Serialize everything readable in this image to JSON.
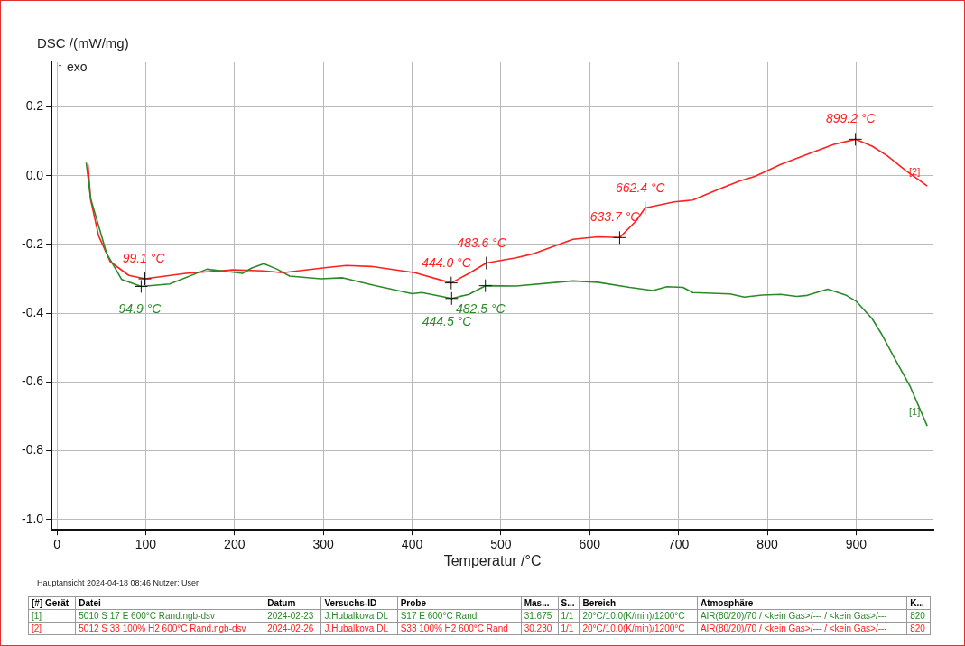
{
  "chart_data": {
    "type": "line",
    "ylabel": "DSC /(mW/mg)",
    "xlabel": "Temperatur /°C",
    "xlim": [
      -6,
      987
    ],
    "xticks": [
      0,
      100,
      200,
      300,
      400,
      500,
      600,
      700,
      800,
      900
    ],
    "ylim": [
      -1.03,
      0.33
    ],
    "yticks": [
      {
        "value": 0.2,
        "label": "0.2"
      },
      {
        "value": 0,
        "label": "0.0"
      },
      {
        "value": -0.2,
        "label": "-0.2"
      },
      {
        "value": -0.4,
        "label": "-0.4"
      },
      {
        "value": -0.6,
        "label": "-0.6"
      },
      {
        "value": -0.8,
        "label": "-0.8"
      },
      {
        "value": -1,
        "label": "-1.0"
      }
    ],
    "grid": true,
    "legend": false,
    "marker": "none",
    "line_style": "solid",
    "series": [
      {
        "name": "[1]",
        "color": "#2a8a2a",
        "x": [
          33,
          38,
          56,
          73,
          94.9,
          127,
          169,
          209,
          219,
          233,
          248,
          262,
          297,
          322,
          357,
          400,
          411,
          444.5,
          464,
          482.5,
          517,
          581,
          609,
          645,
          671,
          687,
          705,
          716,
          758,
          774,
          794,
          815,
          833,
          845,
          868,
          889,
          900,
          918,
          929,
          943,
          961,
          980
        ],
        "values": [
          0.038,
          -0.066,
          -0.226,
          -0.302,
          -0.322,
          -0.315,
          -0.272,
          -0.284,
          -0.269,
          -0.256,
          -0.272,
          -0.292,
          -0.3,
          -0.297,
          -0.319,
          -0.343,
          -0.34,
          -0.357,
          -0.345,
          -0.32,
          -0.321,
          -0.306,
          -0.31,
          -0.325,
          -0.334,
          -0.323,
          -0.325,
          -0.34,
          -0.344,
          -0.353,
          -0.347,
          -0.345,
          -0.351,
          -0.348,
          -0.33,
          -0.348,
          -0.365,
          -0.416,
          -0.462,
          -0.53,
          -0.614,
          -0.728
        ]
      },
      {
        "name": "[2]",
        "color": "#ff2020",
        "x": [
          35,
          38,
          47,
          60,
          81,
          99.1,
          145,
          198,
          233,
          254,
          304,
          326,
          354,
          403,
          444,
          464,
          483.6,
          517,
          538,
          581,
          609,
          633.7,
          652,
          662.4,
          695,
          716,
          744,
          769,
          786,
          815,
          847,
          875,
          899.2,
          918,
          935,
          956,
          980
        ],
        "values": [
          0.033,
          -0.07,
          -0.175,
          -0.25,
          -0.29,
          -0.3,
          -0.284,
          -0.274,
          -0.277,
          -0.282,
          -0.267,
          -0.261,
          -0.264,
          -0.282,
          -0.312,
          -0.284,
          -0.254,
          -0.239,
          -0.226,
          -0.185,
          -0.178,
          -0.18,
          -0.132,
          -0.094,
          -0.076,
          -0.071,
          -0.041,
          -0.015,
          -0.002,
          0.033,
          0.064,
          0.091,
          0.106,
          0.086,
          0.058,
          0.015,
          -0.03
        ]
      }
    ],
    "annotations": [
      "↑ exo",
      "Hauptansicht   2024-04-18 08:46   Nutzer: User",
      "[#] Gerät\tDatei\tDatum\tVersuchs-ID\tProbe\tMas...\tS...\tBereich\tAtmosphäre\tK...",
      "[1]\t5010  S 17  E  600°C  Rand.ngb-dsv\t2024-02-23\tJ.Hubalkova  DL\tS17  E  600°C  Rand\t31.675\t1/1\t20°C/10.0(K/min)/1200°C\tAIR(80/20)/70 / <kein Gas>/--- / <kein Gas>/---\t820",
      "[2]\t5012  S 33  100% H2  600°C  Rand.ngb-dsv\t2024-02-26\tJ.Hubalkova  DL\tS33 100% H2 600°C  Rand\t30.230\t1/1\t20°C/10.0(K/min)/1200°C\tAIR(80/20)/70 / <kein Gas>/--- / <kein Gas>/---\t820",
      {
        "text": "99.1 °C",
        "x": 99.1,
        "y": -0.3
      },
      {
        "text": "94.9 °C",
        "x": 94.9,
        "y": -0.322
      },
      {
        "text": "444.0 °C",
        "x": 444,
        "y": -0.312
      },
      {
        "text": "444.5 °C",
        "x": 444.5,
        "y": -0.357
      },
      {
        "text": "483.6 °C",
        "x": 483.6,
        "y": -0.254
      },
      {
        "text": "482.5 °C",
        "x": 482.5,
        "y": -0.32
      },
      {
        "text": "633.7 °C",
        "x": 633.7,
        "y": -0.18
      },
      {
        "text": "662.4 °C",
        "x": 662.4,
        "y": -0.094
      },
      {
        "text": "899.2 °C",
        "x": 899.2,
        "y": 0.106
      }
    ]
  }
}
